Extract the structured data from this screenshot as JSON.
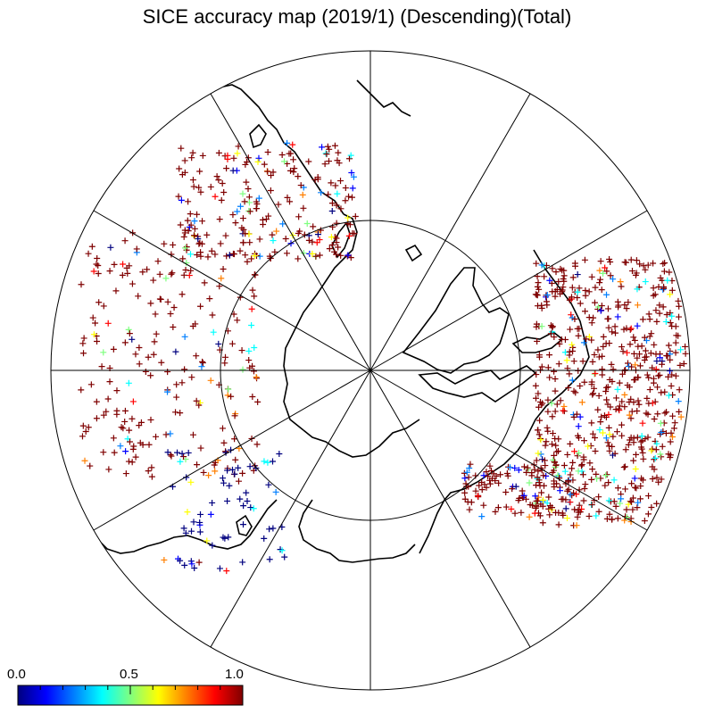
{
  "title": "SICE accuracy map (2019/1) (Descending)(Total)",
  "map": {
    "projection": "north-polar-stereographic",
    "graticule": {
      "meridian_step_deg": 30,
      "inner_parallel": true
    },
    "symbol": "+",
    "observations": [
      {
        "region": "north-america-alaska-canada",
        "density": "very-high",
        "dominant_value": 1.0
      },
      {
        "region": "west-pacific-japan",
        "density": "high",
        "dominant_value": 1.0
      },
      {
        "region": "north-pacific-ocean",
        "density": "medium",
        "dominant_value": 1.0
      },
      {
        "region": "kamchatka-coast",
        "density": "low",
        "dominant_value": 0.0
      },
      {
        "region": "hudson-bay-labrador",
        "density": "very-high",
        "dominant_value": 1.0
      }
    ]
  },
  "colorbar": {
    "min_label": "0.0",
    "mid_label": "0.5",
    "max_label": "1.0",
    "colors": [
      "#00007f",
      "#0000ff",
      "#007fff",
      "#00ffff",
      "#7fff7f",
      "#ffff00",
      "#ff7f00",
      "#ff0000",
      "#7f0000"
    ]
  }
}
